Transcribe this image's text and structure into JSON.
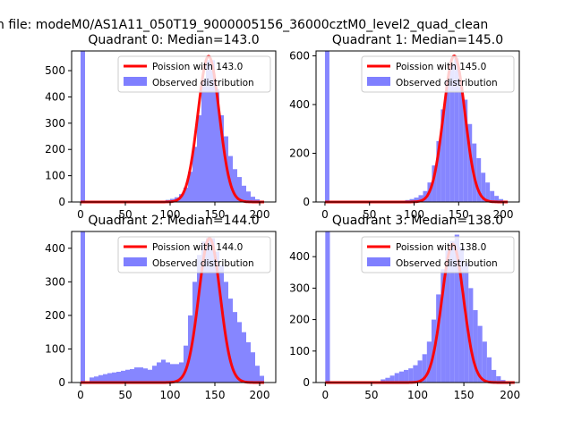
{
  "suptitle": "n file: modeM0/AS1A11_050T19_9000005156_36000cztM0_level2_quad_clean",
  "legend_labels": {
    "fit": "Poission with",
    "hist": "Observed distribution"
  },
  "colors": {
    "hist": "#7f7fff",
    "fit": "#ff0000",
    "axis": "#000000"
  },
  "chart_data": [
    {
      "type": "bar",
      "title": "Quadrant 0: Median=143.0",
      "median": 143.0,
      "fit_label": "Poission with 143.0",
      "xlim": [
        -10,
        218
      ],
      "ylim": [
        0,
        575
      ],
      "xticks": [
        0,
        50,
        100,
        150,
        200
      ],
      "yticks": [
        0,
        100,
        200,
        300,
        400,
        500
      ],
      "bin_width": 5,
      "bins_x": [
        0,
        90,
        95,
        100,
        105,
        110,
        115,
        120,
        125,
        130,
        135,
        140,
        145,
        150,
        155,
        160,
        165,
        170,
        175,
        180,
        185,
        190,
        195,
        200
      ],
      "bins_y": [
        575,
        5,
        8,
        12,
        18,
        30,
        55,
        115,
        210,
        330,
        470,
        540,
        540,
        430,
        330,
        250,
        175,
        125,
        95,
        62,
        40,
        20,
        10,
        5
      ],
      "fit_peak": 555
    },
    {
      "type": "bar",
      "title": "Quadrant 1: Median=145.0",
      "median": 145.0,
      "fit_label": "Poission with 145.0",
      "xlim": [
        -10,
        218
      ],
      "ylim": [
        0,
        620
      ],
      "xticks": [
        0,
        50,
        100,
        150,
        200
      ],
      "yticks": [
        0,
        200,
        400,
        600
      ],
      "bin_width": 5,
      "bins_x": [
        0,
        85,
        90,
        95,
        100,
        105,
        110,
        115,
        120,
        125,
        130,
        135,
        140,
        145,
        150,
        155,
        160,
        165,
        170,
        175,
        180,
        185,
        190,
        195,
        200
      ],
      "bins_y": [
        620,
        5,
        8,
        12,
        18,
        28,
        45,
        80,
        150,
        250,
        380,
        500,
        570,
        590,
        500,
        420,
        320,
        240,
        180,
        120,
        80,
        45,
        25,
        12,
        5
      ],
      "fit_peak": 600
    },
    {
      "type": "bar",
      "title": "Quadrant 2: Median=144.0",
      "median": 144.0,
      "fit_label": "Poission with 144.0",
      "xlim": [
        -10,
        218
      ],
      "ylim": [
        0,
        450
      ],
      "xticks": [
        0,
        50,
        100,
        150,
        200
      ],
      "yticks": [
        0,
        100,
        200,
        300,
        400
      ],
      "bin_width": 5,
      "bins_x": [
        0,
        10,
        15,
        20,
        25,
        30,
        35,
        40,
        45,
        50,
        55,
        60,
        65,
        70,
        75,
        80,
        85,
        90,
        95,
        100,
        105,
        110,
        115,
        120,
        125,
        130,
        135,
        140,
        145,
        150,
        155,
        160,
        165,
        170,
        175,
        180,
        185,
        190,
        195,
        200
      ],
      "bins_y": [
        450,
        15,
        18,
        22,
        25,
        28,
        30,
        32,
        35,
        38,
        40,
        45,
        45,
        42,
        38,
        50,
        60,
        68,
        60,
        55,
        55,
        60,
        110,
        200,
        300,
        380,
        420,
        430,
        430,
        390,
        350,
        300,
        250,
        210,
        180,
        150,
        120,
        90,
        50,
        20
      ],
      "fit_peak": 430
    },
    {
      "type": "bar",
      "title": "Quadrant 3: Median=138.0",
      "median": 138.0,
      "fit_label": "Poission with 138.0",
      "xlim": [
        -10,
        210
      ],
      "ylim": [
        0,
        480
      ],
      "xticks": [
        0,
        50,
        100,
        150,
        200
      ],
      "yticks": [
        0,
        100,
        200,
        300,
        400
      ],
      "bin_width": 5,
      "bins_x": [
        0,
        60,
        65,
        70,
        75,
        80,
        85,
        90,
        95,
        100,
        105,
        110,
        115,
        120,
        125,
        130,
        135,
        140,
        145,
        150,
        155,
        160,
        165,
        170,
        175,
        180,
        185,
        190
      ],
      "bins_y": [
        480,
        10,
        15,
        22,
        30,
        35,
        40,
        45,
        55,
        70,
        90,
        130,
        200,
        280,
        360,
        420,
        450,
        470,
        430,
        380,
        300,
        230,
        180,
        130,
        80,
        40,
        20,
        8
      ],
      "fit_peak": 440
    }
  ]
}
